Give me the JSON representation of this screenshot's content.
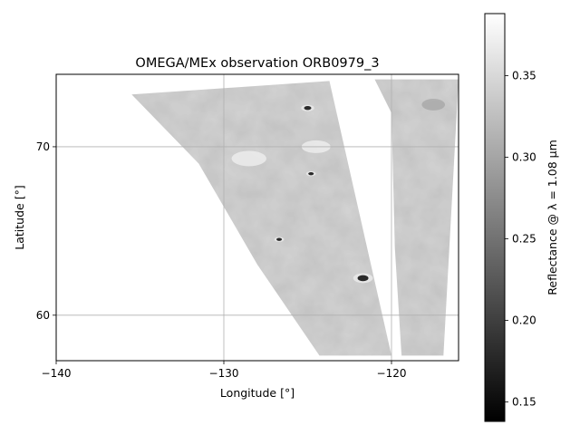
{
  "chart_data": {
    "type": "heatmap",
    "title": "OMEGA/MEx observation ORB0979_3",
    "xlabel": "Longitude [°]",
    "ylabel": "Latitude [°]",
    "xlim": [
      -140,
      -116
    ],
    "ylim": [
      57.3,
      74.3
    ],
    "xticks": [
      -140,
      -130,
      -120
    ],
    "xtick_labels": [
      "−140",
      "−130",
      "−120"
    ],
    "yticks": [
      60,
      70
    ],
    "ytick_labels": [
      "60",
      "70"
    ],
    "grid": true,
    "colormap": "gray",
    "colorbar": {
      "label": "Reflectance @ λ = 1.08 μm",
      "vmin": 0.138,
      "vmax": 0.388,
      "ticks": [
        0.15,
        0.2,
        0.25,
        0.3,
        0.35
      ],
      "tick_labels": [
        "0.15",
        "0.20",
        "0.25",
        "0.30",
        "0.35"
      ]
    },
    "typical_reflectance": 0.33,
    "swaths": [
      {
        "name": "main-swath",
        "outline": [
          [
            -135.5,
            73.1
          ],
          [
            -123.7,
            73.9
          ],
          [
            -120.0,
            57.6
          ],
          [
            -124.3,
            57.6
          ],
          [
            -128.0,
            63.0
          ],
          [
            -131.5,
            69.0
          ]
        ]
      },
      {
        "name": "secondary-swath",
        "outline": [
          [
            -121.0,
            74.0
          ],
          [
            -116.0,
            74.0
          ],
          [
            -116.9,
            57.6
          ],
          [
            -119.4,
            57.6
          ],
          [
            -119.8,
            64.0
          ],
          [
            -120.0,
            72.0
          ]
        ]
      }
    ],
    "features": [
      {
        "name": "crater",
        "lon": -121.7,
        "lat": 62.2,
        "size": 6
      },
      {
        "name": "crater",
        "lon": -126.7,
        "lat": 64.5,
        "size": 3
      },
      {
        "name": "crater",
        "lon": -124.8,
        "lat": 68.4,
        "size": 3
      },
      {
        "name": "crater",
        "lon": -125.0,
        "lat": 72.3,
        "size": 4
      },
      {
        "name": "bright-patch",
        "lon": -124.5,
        "lat": 70.0,
        "size": 10
      },
      {
        "name": "bright-patch",
        "lon": -128.5,
        "lat": 69.3,
        "size": 12
      },
      {
        "name": "dark-patch",
        "lon": -117.5,
        "lat": 72.5,
        "size": 8
      }
    ]
  }
}
